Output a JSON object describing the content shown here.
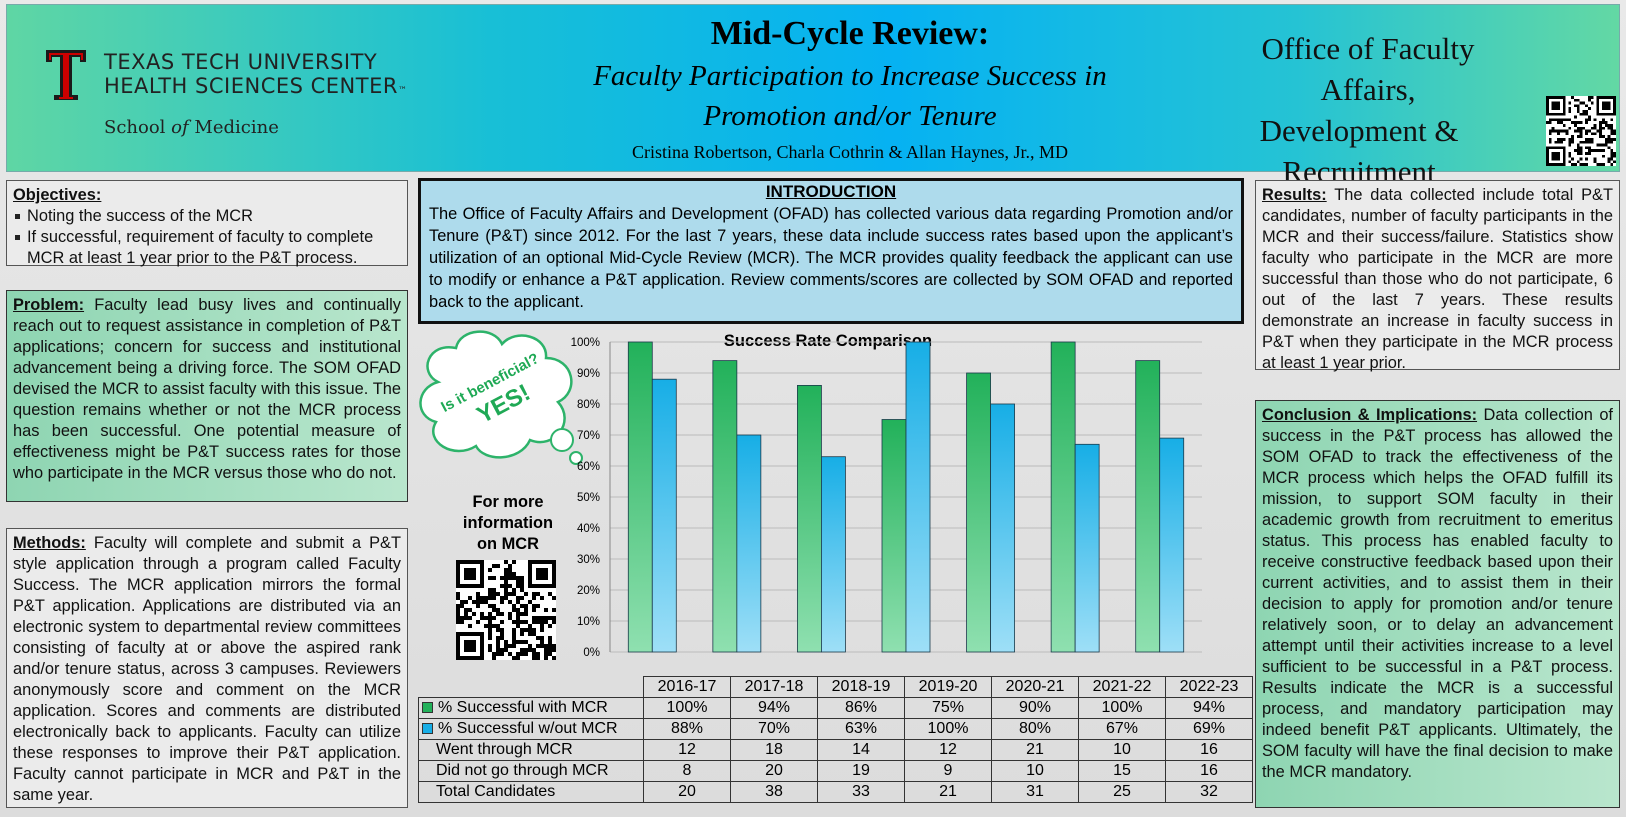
{
  "header": {
    "logo_line1": "TEXAS TECH UNIVERSITY",
    "logo_line2": "HEALTH SCIENCES CENTER",
    "logo_tm": "™",
    "logo_line3_pre": "School",
    "logo_line3_of": "of",
    "logo_line3_post": "Medicine",
    "title": "Mid-Cycle Review:",
    "subtitle_line1": "Faculty Participation to Increase Success in",
    "subtitle_line2": "Promotion and/or Tenure",
    "authors": "Cristina Robertson, Charla Cothrin & Allan Haynes, Jr., MD",
    "office_line1": "Office of Faculty Affairs,",
    "office_line2": "Development &",
    "office_line3": "Recruitment",
    "logo_color": "#cc0000"
  },
  "objectives": {
    "heading": "Objectives:",
    "items": [
      "Noting the success of the MCR",
      "If successful, requirement of faculty to complete MCR at least 1 year prior to the P&T process."
    ]
  },
  "problem": {
    "heading": "Problem:",
    "text": " Faculty lead busy lives and continually reach out to request assistance in completion of P&T applications; concern for success and institutional advancement being a driving force. The SOM OFAD devised the MCR to assist faculty with this issue. The question remains whether or not the MCR process has been successful. One potential measure of effectiveness might be P&T success rates for those who participate in the MCR versus those who do not."
  },
  "methods": {
    "heading": "Methods:",
    "text": " Faculty will complete and submit a P&T style application through a program called Faculty Success. The MCR application mirrors the formal P&T application. Applications are distributed via an electronic system to departmental review committees consisting of faculty at or above the aspired rank and/or tenure status, across 3 campuses. Reviewers anonymously score and comment on the MCR application. Scores and comments are distributed electronically back to applicants. Faculty can utilize these responses to improve their P&T application. Faculty cannot participate in MCR and P&T in the same year."
  },
  "introduction": {
    "heading": "INTRODUCTION",
    "text": "The Office of Faculty Affairs and Development (OFAD) has collected various data regarding Promotion and/or Tenure (P&T) since 2012. For the last 7 years, these data include success rates based upon the applicant’s utilization of an optional Mid-Cycle Review (MCR). The MCR provides quality feedback the applicant can use to modify or enhance a P&T application. Review comments/scores are collected by SOM OFAD and reported back to the applicant."
  },
  "cloud": {
    "line1": "Is it beneficial?",
    "line2": "YES!"
  },
  "more_info": {
    "line1": "For more",
    "line2": "information",
    "line3": "on MCR"
  },
  "results": {
    "heading": "Results:",
    "text": " The data collected include total P&T candidates, number of faculty participants in the MCR and their success/failure. Statistics show faculty who participate in the MCR are more successful than those who do not participate, 6 out of the last 7 years. These results demonstrate an increase in faculty success in P&T when they participate in the MCR process at least 1 year prior."
  },
  "conclusion": {
    "heading": "Conclusion & Implications:",
    "text": " Data collection of success in the P&T process has allowed the SOM OFAD to track the effectiveness of the MCR process which helps the OFAD fulfill its mission, to support SOM faculty in their academic growth from recruitment to emeritus status. This process has enabled faculty to receive constructive feedback based upon their current activities, and to assist them in their decision to apply for promotion and/or tenure relatively soon, or to delay an advancement attempt until their activities increase to a level sufficient to be successful in a P&T process. Results indicate the MCR is a successful process, and mandatory participation may indeed benefit P&T applicants. Ultimately, the SOM faculty will have the final decision to make the MCR mandatory."
  },
  "chart_data": {
    "type": "bar",
    "title": "Success Rate Comparison",
    "categories": [
      "2016-17",
      "2017-18",
      "2018-19",
      "2019-20",
      "2020-21",
      "2021-22",
      "2022-23"
    ],
    "series": [
      {
        "name": "% Successful with MCR",
        "values": [
          100,
          94,
          86,
          75,
          90,
          100,
          94
        ],
        "color": "#22b15a"
      },
      {
        "name": "% Successful w/out MCR",
        "values": [
          88,
          70,
          63,
          100,
          80,
          67,
          69
        ],
        "color": "#17aee6"
      }
    ],
    "ylim": [
      0,
      100
    ],
    "yticks": [
      "0%",
      "10%",
      "20%",
      "30%",
      "40%",
      "50%",
      "60%",
      "70%",
      "80%",
      "90%",
      "100%"
    ],
    "grid": true,
    "legend": "table"
  },
  "table": {
    "rows": [
      {
        "label": "% Successful with MCR",
        "swatch": "#22b15a",
        "values": [
          "100%",
          "94%",
          "86%",
          "75%",
          "90%",
          "100%",
          "94%"
        ]
      },
      {
        "label": "% Successful w/out MCR",
        "swatch": "#17aee6",
        "values": [
          "88%",
          "70%",
          "63%",
          "100%",
          "80%",
          "67%",
          "69%"
        ]
      },
      {
        "label": "Went through MCR",
        "values": [
          "12",
          "18",
          "14",
          "12",
          "21",
          "10",
          "16"
        ]
      },
      {
        "label": "Did not go through MCR",
        "values": [
          "8",
          "20",
          "19",
          "9",
          "10",
          "15",
          "16"
        ]
      },
      {
        "label": "Total Candidates",
        "values": [
          "20",
          "38",
          "33",
          "21",
          "31",
          "25",
          "32"
        ]
      }
    ]
  }
}
